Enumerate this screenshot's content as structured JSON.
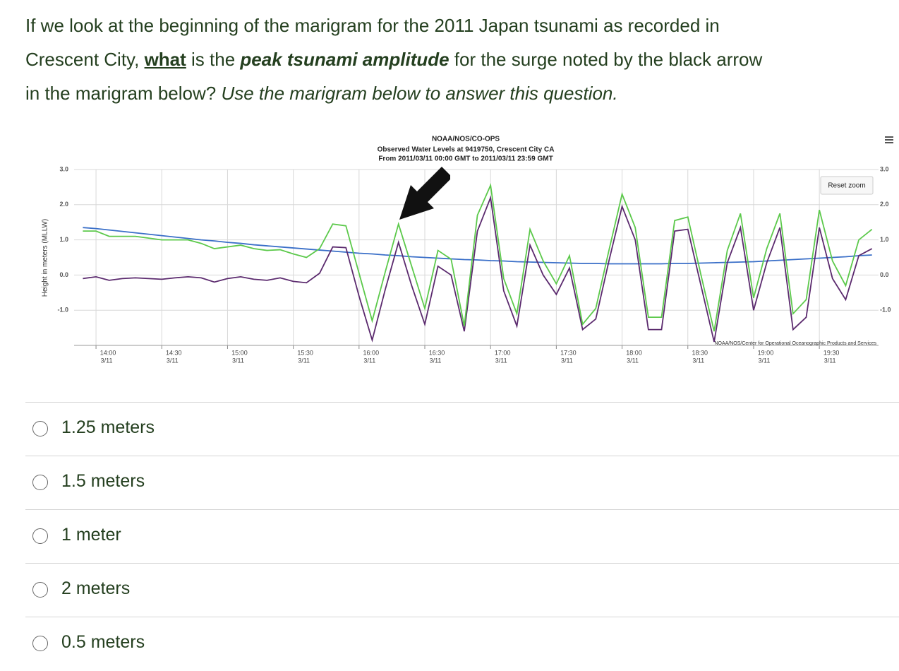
{
  "question": {
    "parts": [
      "If we look at the beginning of the marigram for the 2011 Japan tsunami as recorded in",
      "Crescent City, ",
      "what",
      " is the ",
      "peak tsunami amplitude",
      " for the surge noted by the black arrow",
      "in the marigram below? ",
      "Use the marigram below to answer this question."
    ]
  },
  "chart_data": {
    "type": "line",
    "title": "NOAA/NOS/CO-OPS",
    "subtitle": [
      "Observed Water Levels at 9419750, Crescent City CA",
      "From 2011/03/11 00:00 GMT to 2011/03/11 23:59 GMT"
    ],
    "y_label": "Height in meters (MLLW)",
    "button": "Reset zoom",
    "credit": "NOAA/NOS/Center for Operational Oceanographic Products and Services",
    "x": [
      "13:54",
      "14:00",
      "14:06",
      "14:12",
      "14:18",
      "14:24",
      "14:30",
      "14:36",
      "14:42",
      "14:48",
      "14:54",
      "15:00",
      "15:06",
      "15:12",
      "15:18",
      "15:24",
      "15:30",
      "15:36",
      "15:42",
      "15:48",
      "15:54",
      "16:00",
      "16:06",
      "16:12",
      "16:18",
      "16:24",
      "16:30",
      "16:36",
      "16:42",
      "16:48",
      "16:54",
      "17:00",
      "17:06",
      "17:12",
      "17:18",
      "17:24",
      "17:30",
      "17:36",
      "17:42",
      "17:48",
      "17:54",
      "18:00",
      "18:06",
      "18:12",
      "18:18",
      "18:24",
      "18:30",
      "18:36",
      "18:42",
      "18:48",
      "18:54",
      "19:00",
      "19:06",
      "19:12",
      "19:18",
      "19:24",
      "19:30",
      "19:36",
      "19:42",
      "19:48",
      "19:54"
    ],
    "series": [
      {
        "color": "#3a6fc8",
        "values": [
          1.35,
          1.32,
          1.28,
          1.24,
          1.2,
          1.16,
          1.12,
          1.08,
          1.04,
          1.0,
          0.97,
          0.93,
          0.9,
          0.86,
          0.83,
          0.8,
          0.77,
          0.74,
          0.71,
          0.68,
          0.65,
          0.62,
          0.6,
          0.57,
          0.55,
          0.52,
          0.5,
          0.48,
          0.46,
          0.44,
          0.43,
          0.41,
          0.4,
          0.38,
          0.37,
          0.36,
          0.35,
          0.34,
          0.33,
          0.33,
          0.32,
          0.32,
          0.32,
          0.32,
          0.32,
          0.33,
          0.33,
          0.34,
          0.35,
          0.36,
          0.37,
          0.38,
          0.4,
          0.42,
          0.44,
          0.46,
          0.48,
          0.5,
          0.52,
          0.55,
          0.57
        ]
      },
      {
        "color": "#5b2a6e",
        "values": [
          -0.1,
          -0.05,
          -0.15,
          -0.1,
          -0.08,
          -0.1,
          -0.12,
          -0.08,
          -0.05,
          -0.08,
          -0.2,
          -0.1,
          -0.05,
          -0.12,
          -0.15,
          -0.08,
          -0.18,
          -0.22,
          0.05,
          0.8,
          0.78,
          -0.6,
          -1.85,
          -0.4,
          0.93,
          -0.3,
          -1.4,
          0.25,
          0.0,
          -1.6,
          1.25,
          2.2,
          -0.45,
          -1.45,
          0.85,
          0.0,
          -0.55,
          0.2,
          -1.55,
          -1.25,
          0.4,
          1.95,
          1.0,
          -1.55,
          -1.55,
          1.25,
          1.3,
          -0.3,
          -1.9,
          0.35,
          1.35,
          -1.0,
          0.35,
          1.35,
          -1.55,
          -1.2,
          1.35,
          -0.1,
          -0.7,
          0.55,
          0.75
        ]
      },
      {
        "color": "#5cc94b",
        "values": [
          1.25,
          1.25,
          1.1,
          1.1,
          1.1,
          1.05,
          1.0,
          1.0,
          1.0,
          0.9,
          0.75,
          0.8,
          0.85,
          0.75,
          0.7,
          0.72,
          0.6,
          0.5,
          0.75,
          1.45,
          1.4,
          0.05,
          -1.3,
          0.1,
          1.45,
          0.25,
          -0.95,
          0.7,
          0.45,
          -1.45,
          1.7,
          2.55,
          -0.1,
          -1.1,
          1.3,
          0.4,
          -0.25,
          0.55,
          -1.4,
          -0.95,
          0.7,
          2.3,
          1.35,
          -1.2,
          -1.2,
          1.55,
          1.65,
          0.0,
          -1.6,
          0.7,
          1.75,
          -0.65,
          0.75,
          1.75,
          -1.1,
          -0.7,
          1.85,
          0.4,
          -0.3,
          1.0,
          1.3
        ]
      }
    ],
    "xlim": [
      "13:50",
      "19:57"
    ],
    "xticks": [
      {
        "value": "14:00",
        "label": "14:00",
        "date": "3/11"
      },
      {
        "value": "14:30",
        "label": "14:30",
        "date": "3/11"
      },
      {
        "value": "15:00",
        "label": "15:00",
        "date": "3/11"
      },
      {
        "value": "15:30",
        "label": "15:30",
        "date": "3/11"
      },
      {
        "value": "16:00",
        "label": "16:00",
        "date": "3/11"
      },
      {
        "value": "16:30",
        "label": "16:30",
        "date": "3/11"
      },
      {
        "value": "17:00",
        "label": "17:00",
        "date": "3/11"
      },
      {
        "value": "17:30",
        "label": "17:30",
        "date": "3/11"
      },
      {
        "value": "18:00",
        "label": "18:00",
        "date": "3/11"
      },
      {
        "value": "18:30",
        "label": "18:30",
        "date": "3/11"
      },
      {
        "value": "19:00",
        "label": "19:00",
        "date": "3/11"
      },
      {
        "value": "19:30",
        "label": "19:30",
        "date": "3/11"
      }
    ],
    "ylim": [
      -2,
      3
    ],
    "yticks": [
      {
        "value": 3,
        "label": "3.0"
      },
      {
        "value": 2,
        "label": "2.0"
      },
      {
        "value": 1,
        "label": "1.0"
      },
      {
        "value": 0,
        "label": "0.0"
      },
      {
        "value": -1,
        "label": "-1.0"
      }
    ],
    "y2lim": [
      -2,
      3
    ],
    "y2ticks": [
      {
        "value": 3,
        "label": "3.0"
      },
      {
        "value": 2,
        "label": "2.0"
      },
      {
        "value": 1,
        "label": "1.0"
      },
      {
        "value": 0,
        "label": "0.0"
      },
      {
        "value": -1,
        "label": "-1.0"
      }
    ],
    "grid": true
  },
  "options": [
    "1.25 meters",
    "1.5 meters",
    "1 meter",
    "2 meters",
    "0.5 meters"
  ]
}
